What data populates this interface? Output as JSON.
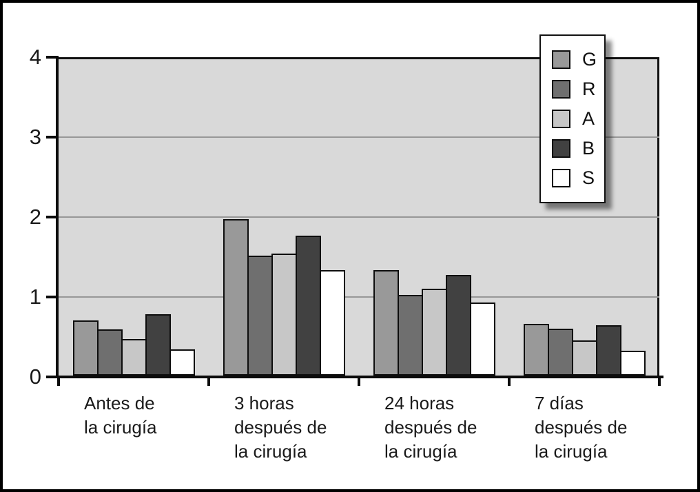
{
  "chart_data": {
    "type": "bar",
    "title": "",
    "xlabel": "",
    "ylabel": "",
    "ylim": [
      0,
      4
    ],
    "yticks": [
      0,
      1,
      2,
      3,
      4
    ],
    "grid": true,
    "plot_bg_color": "#d9d9d9",
    "gridline_color": "#979797",
    "legend_position": "top-right",
    "categories": [
      {
        "lines": [
          "Antes de",
          "la cirugía"
        ]
      },
      {
        "lines": [
          "3 horas",
          "después de",
          "la cirugía"
        ]
      },
      {
        "lines": [
          "24 horas",
          "después de",
          "la cirugía"
        ]
      },
      {
        "lines": [
          "7 días",
          "después de",
          "la cirugía"
        ]
      }
    ],
    "series": [
      {
        "name": "G",
        "color": "#999999",
        "values": [
          0.69,
          1.96,
          1.32,
          0.65
        ]
      },
      {
        "name": "R",
        "color": "#6f6f6f",
        "values": [
          0.58,
          1.5,
          1.01,
          0.59
        ]
      },
      {
        "name": "A",
        "color": "#c7c7c7",
        "values": [
          0.46,
          1.53,
          1.09,
          0.44
        ]
      },
      {
        "name": "B",
        "color": "#414141",
        "values": [
          0.77,
          1.75,
          1.26,
          0.63
        ]
      },
      {
        "name": "S",
        "color": "#ffffff",
        "values": [
          0.33,
          1.32,
          0.91,
          0.31
        ]
      }
    ]
  }
}
